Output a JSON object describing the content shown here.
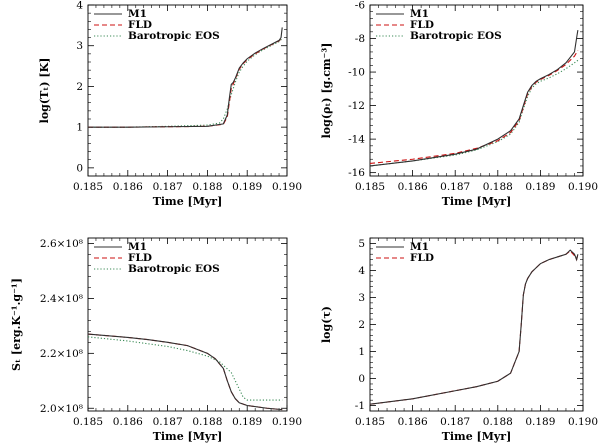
{
  "figure": {
    "series_styles": [
      {
        "name": "M1",
        "color": "#303030",
        "dash": ""
      },
      {
        "name": "FLD",
        "color": "#cc1111",
        "dash": "5,3"
      },
      {
        "name": "Barotropic EOS",
        "color": "#3a8a55",
        "dash": "1.2,2"
      }
    ]
  },
  "chart_data": [
    {
      "id": "temperature",
      "type": "line",
      "xlabel": "Time  [Myr]",
      "ylabel": "log(Tₜ)  [K]",
      "xlim": [
        0.185,
        0.19
      ],
      "ylim": [
        -0.2,
        4.0
      ],
      "xticks": [
        0.185,
        0.186,
        0.187,
        0.188,
        0.189,
        0.19
      ],
      "xtick_labels": [
        "0.185",
        "0.186",
        "0.187",
        "0.188",
        "0.189",
        "0.190"
      ],
      "yticks": [
        0,
        1,
        2,
        3,
        4
      ],
      "ytick_labels": [
        "0",
        "1",
        "2",
        "3",
        "4"
      ],
      "legend": [
        "M1",
        "FLD",
        "Barotropic EOS"
      ],
      "series": [
        {
          "name": "M1",
          "x": [
            0.185,
            0.186,
            0.187,
            0.188,
            0.1884,
            0.1885,
            0.18855,
            0.1886,
            0.18865,
            0.1887,
            0.1888,
            0.1889,
            0.189,
            0.1892,
            0.1894,
            0.1896,
            0.1898,
            0.18985,
            0.18988
          ],
          "y": [
            1.0,
            1.0,
            1.01,
            1.02,
            1.08,
            1.3,
            1.7,
            2.05,
            2.1,
            2.2,
            2.45,
            2.58,
            2.68,
            2.82,
            2.93,
            3.03,
            3.13,
            3.2,
            3.45
          ]
        },
        {
          "name": "FLD",
          "x": [
            0.185,
            0.186,
            0.187,
            0.188,
            0.1884,
            0.1885,
            0.18855,
            0.1886,
            0.18865,
            0.1887,
            0.1888,
            0.1889,
            0.189,
            0.1892,
            0.1894,
            0.1896,
            0.1898,
            0.18988
          ],
          "y": [
            1.0,
            1.0,
            1.01,
            1.02,
            1.07,
            1.25,
            1.6,
            1.95,
            2.06,
            2.18,
            2.42,
            2.56,
            2.66,
            2.8,
            2.92,
            3.02,
            3.12,
            3.2
          ]
        },
        {
          "name": "Barotropic EOS",
          "x": [
            0.185,
            0.186,
            0.187,
            0.188,
            0.1883,
            0.1884,
            0.1885,
            0.1886,
            0.1887,
            0.1888,
            0.1889,
            0.189,
            0.1892,
            0.1894,
            0.1896,
            0.1898,
            0.18988
          ],
          "y": [
            1.0,
            1.0,
            1.02,
            1.05,
            1.1,
            1.2,
            1.45,
            1.8,
            2.1,
            2.35,
            2.5,
            2.62,
            2.78,
            2.9,
            3.0,
            3.1,
            3.18
          ]
        }
      ]
    },
    {
      "id": "density",
      "type": "line",
      "xlabel": "Time  [Myr]",
      "ylabel": "log(ρₜ)  [g.cm⁻³]",
      "xlim": [
        0.185,
        0.19
      ],
      "ylim": [
        -16.2,
        -6.0
      ],
      "xticks": [
        0.185,
        0.186,
        0.187,
        0.188,
        0.189,
        0.19
      ],
      "xtick_labels": [
        "0.185",
        "0.186",
        "0.187",
        "0.188",
        "0.189",
        "0.190"
      ],
      "yticks": [
        -16,
        -14,
        -12,
        -10,
        -8,
        -6
      ],
      "ytick_labels": [
        "-16",
        "-14",
        "-12",
        "-10",
        "-8",
        "-6"
      ],
      "legend": [
        "M1",
        "FLD",
        "Barotropic EOS"
      ],
      "series": [
        {
          "name": "M1",
          "x": [
            0.185,
            0.186,
            0.187,
            0.1875,
            0.188,
            0.1883,
            0.1885,
            0.1886,
            0.1887,
            0.1888,
            0.1889,
            0.189,
            0.1892,
            0.1894,
            0.1896,
            0.1898,
            0.18983,
            0.18986,
            0.18988
          ],
          "y": [
            -15.6,
            -15.3,
            -14.9,
            -14.6,
            -14.0,
            -13.5,
            -12.8,
            -12.0,
            -11.2,
            -10.8,
            -10.55,
            -10.4,
            -10.15,
            -9.85,
            -9.45,
            -8.8,
            -8.3,
            -7.8,
            -7.5
          ]
        },
        {
          "name": "FLD",
          "x": [
            0.185,
            0.186,
            0.187,
            0.1875,
            0.188,
            0.1883,
            0.1885,
            0.1886,
            0.1887,
            0.1888,
            0.1889,
            0.189,
            0.1892,
            0.1894,
            0.1896,
            0.1898,
            0.18988
          ],
          "y": [
            -15.45,
            -15.2,
            -14.85,
            -14.55,
            -14.1,
            -13.6,
            -12.9,
            -12.1,
            -11.3,
            -10.85,
            -10.6,
            -10.45,
            -10.2,
            -9.9,
            -9.55,
            -9.05,
            -8.7
          ]
        },
        {
          "name": "Barotropic EOS",
          "x": [
            0.185,
            0.186,
            0.187,
            0.1875,
            0.188,
            0.1883,
            0.1885,
            0.1886,
            0.1887,
            0.1888,
            0.1889,
            0.189,
            0.1892,
            0.1894,
            0.1896,
            0.1898,
            0.18988
          ],
          "y": [
            -15.6,
            -15.3,
            -14.95,
            -14.65,
            -14.15,
            -13.7,
            -13.0,
            -12.2,
            -11.45,
            -10.95,
            -10.7,
            -10.55,
            -10.35,
            -10.1,
            -9.8,
            -9.45,
            -9.3
          ]
        }
      ]
    },
    {
      "id": "entropy",
      "type": "line",
      "xlabel": "Time  [Myr]",
      "ylabel": "Sₜ  [erg.K⁻¹.g⁻¹]",
      "xlim": [
        0.185,
        0.19
      ],
      "ylim": [
        199000000.0,
        262000000.0
      ],
      "xticks": [
        0.185,
        0.186,
        0.187,
        0.188,
        0.189,
        0.19
      ],
      "xtick_labels": [
        "0.185",
        "0.186",
        "0.187",
        "0.188",
        "0.189",
        "0.190"
      ],
      "yticks": [
        200000000.0,
        220000000.0,
        240000000.0,
        260000000.0
      ],
      "ytick_labels": [
        "2.0×10⁸",
        "2.2×10⁸",
        "2.4×10⁸",
        "2.6×10⁸"
      ],
      "legend": [
        "M1",
        "FLD",
        "Barotropic EOS"
      ],
      "series": [
        {
          "name": "M1",
          "x": [
            0.185,
            0.186,
            0.1865,
            0.187,
            0.1875,
            0.188,
            0.1882,
            0.1884,
            0.1885,
            0.1886,
            0.1887,
            0.1888,
            0.189,
            0.1895,
            0.18988
          ],
          "y": [
            227000000.0,
            225800000.0,
            225000000.0,
            224000000.0,
            222800000.0,
            220000000.0,
            218000000.0,
            214500000.0,
            210000000.0,
            206000000.0,
            203500000.0,
            202000000.0,
            201000000.0,
            200000000.0,
            199500000.0
          ]
        },
        {
          "name": "FLD",
          "x": [
            0.185,
            0.186,
            0.1865,
            0.187,
            0.1875,
            0.188,
            0.1882,
            0.1884,
            0.1885,
            0.1886,
            0.1887,
            0.1888,
            0.189,
            0.1895,
            0.18988
          ],
          "y": [
            227000000.0,
            225800000.0,
            225000000.0,
            224000000.0,
            222800000.0,
            220000000.0,
            218000000.0,
            214500000.0,
            210000000.0,
            206000000.0,
            203500000.0,
            202000000.0,
            201000000.0,
            200000000.0,
            199500000.0
          ]
        },
        {
          "name": "Barotropic EOS",
          "x": [
            0.185,
            0.186,
            0.187,
            0.1875,
            0.188,
            0.1883,
            0.1886,
            0.1888,
            0.1889,
            0.189,
            0.1895,
            0.18988
          ],
          "y": [
            226000000.0,
            224500000.0,
            222500000.0,
            221000000.0,
            219000000.0,
            217000000.0,
            213000000.0,
            207000000.0,
            204000000.0,
            203000000.0,
            203000000.0,
            203000000.0
          ]
        }
      ]
    },
    {
      "id": "optical-depth",
      "type": "line",
      "xlabel": "Time  [Myr]",
      "ylabel": "log(τ)",
      "xlim": [
        0.185,
        0.19
      ],
      "ylim": [
        -1.2,
        5.2
      ],
      "xticks": [
        0.185,
        0.186,
        0.187,
        0.188,
        0.189,
        0.19
      ],
      "xtick_labels": [
        "0.185",
        "0.186",
        "0.187",
        "0.188",
        "0.189",
        "0.190"
      ],
      "yticks": [
        -1,
        0,
        1,
        2,
        3,
        4,
        5
      ],
      "ytick_labels": [
        "-1",
        "0",
        "1",
        "2",
        "3",
        "4",
        "5"
      ],
      "legend": [
        "M1",
        "FLD"
      ],
      "series": [
        {
          "name": "M1",
          "x": [
            0.185,
            0.186,
            0.187,
            0.1875,
            0.188,
            0.1883,
            0.1885,
            0.18855,
            0.1886,
            0.18865,
            0.1887,
            0.1888,
            0.1889,
            0.189,
            0.1892,
            0.1894,
            0.1896,
            0.1897,
            0.1898,
            0.18985,
            0.18988
          ],
          "y": [
            -0.95,
            -0.75,
            -0.45,
            -0.3,
            -0.1,
            0.2,
            1.0,
            2.0,
            3.1,
            3.5,
            3.7,
            3.95,
            4.1,
            4.25,
            4.4,
            4.5,
            4.6,
            4.75,
            4.6,
            4.4,
            4.6
          ]
        },
        {
          "name": "FLD",
          "x": [
            0.185,
            0.186,
            0.187,
            0.1875,
            0.188,
            0.1883,
            0.1885,
            0.18855,
            0.1886,
            0.18865,
            0.1887,
            0.1888,
            0.1889,
            0.189,
            0.1892,
            0.1894,
            0.1896,
            0.1897,
            0.1898,
            0.18985,
            0.18988
          ],
          "y": [
            -0.95,
            -0.75,
            -0.45,
            -0.3,
            -0.1,
            0.2,
            1.0,
            2.0,
            3.1,
            3.5,
            3.7,
            3.95,
            4.1,
            4.25,
            4.4,
            4.5,
            4.6,
            4.72,
            4.55,
            4.4,
            4.6
          ]
        }
      ]
    }
  ]
}
